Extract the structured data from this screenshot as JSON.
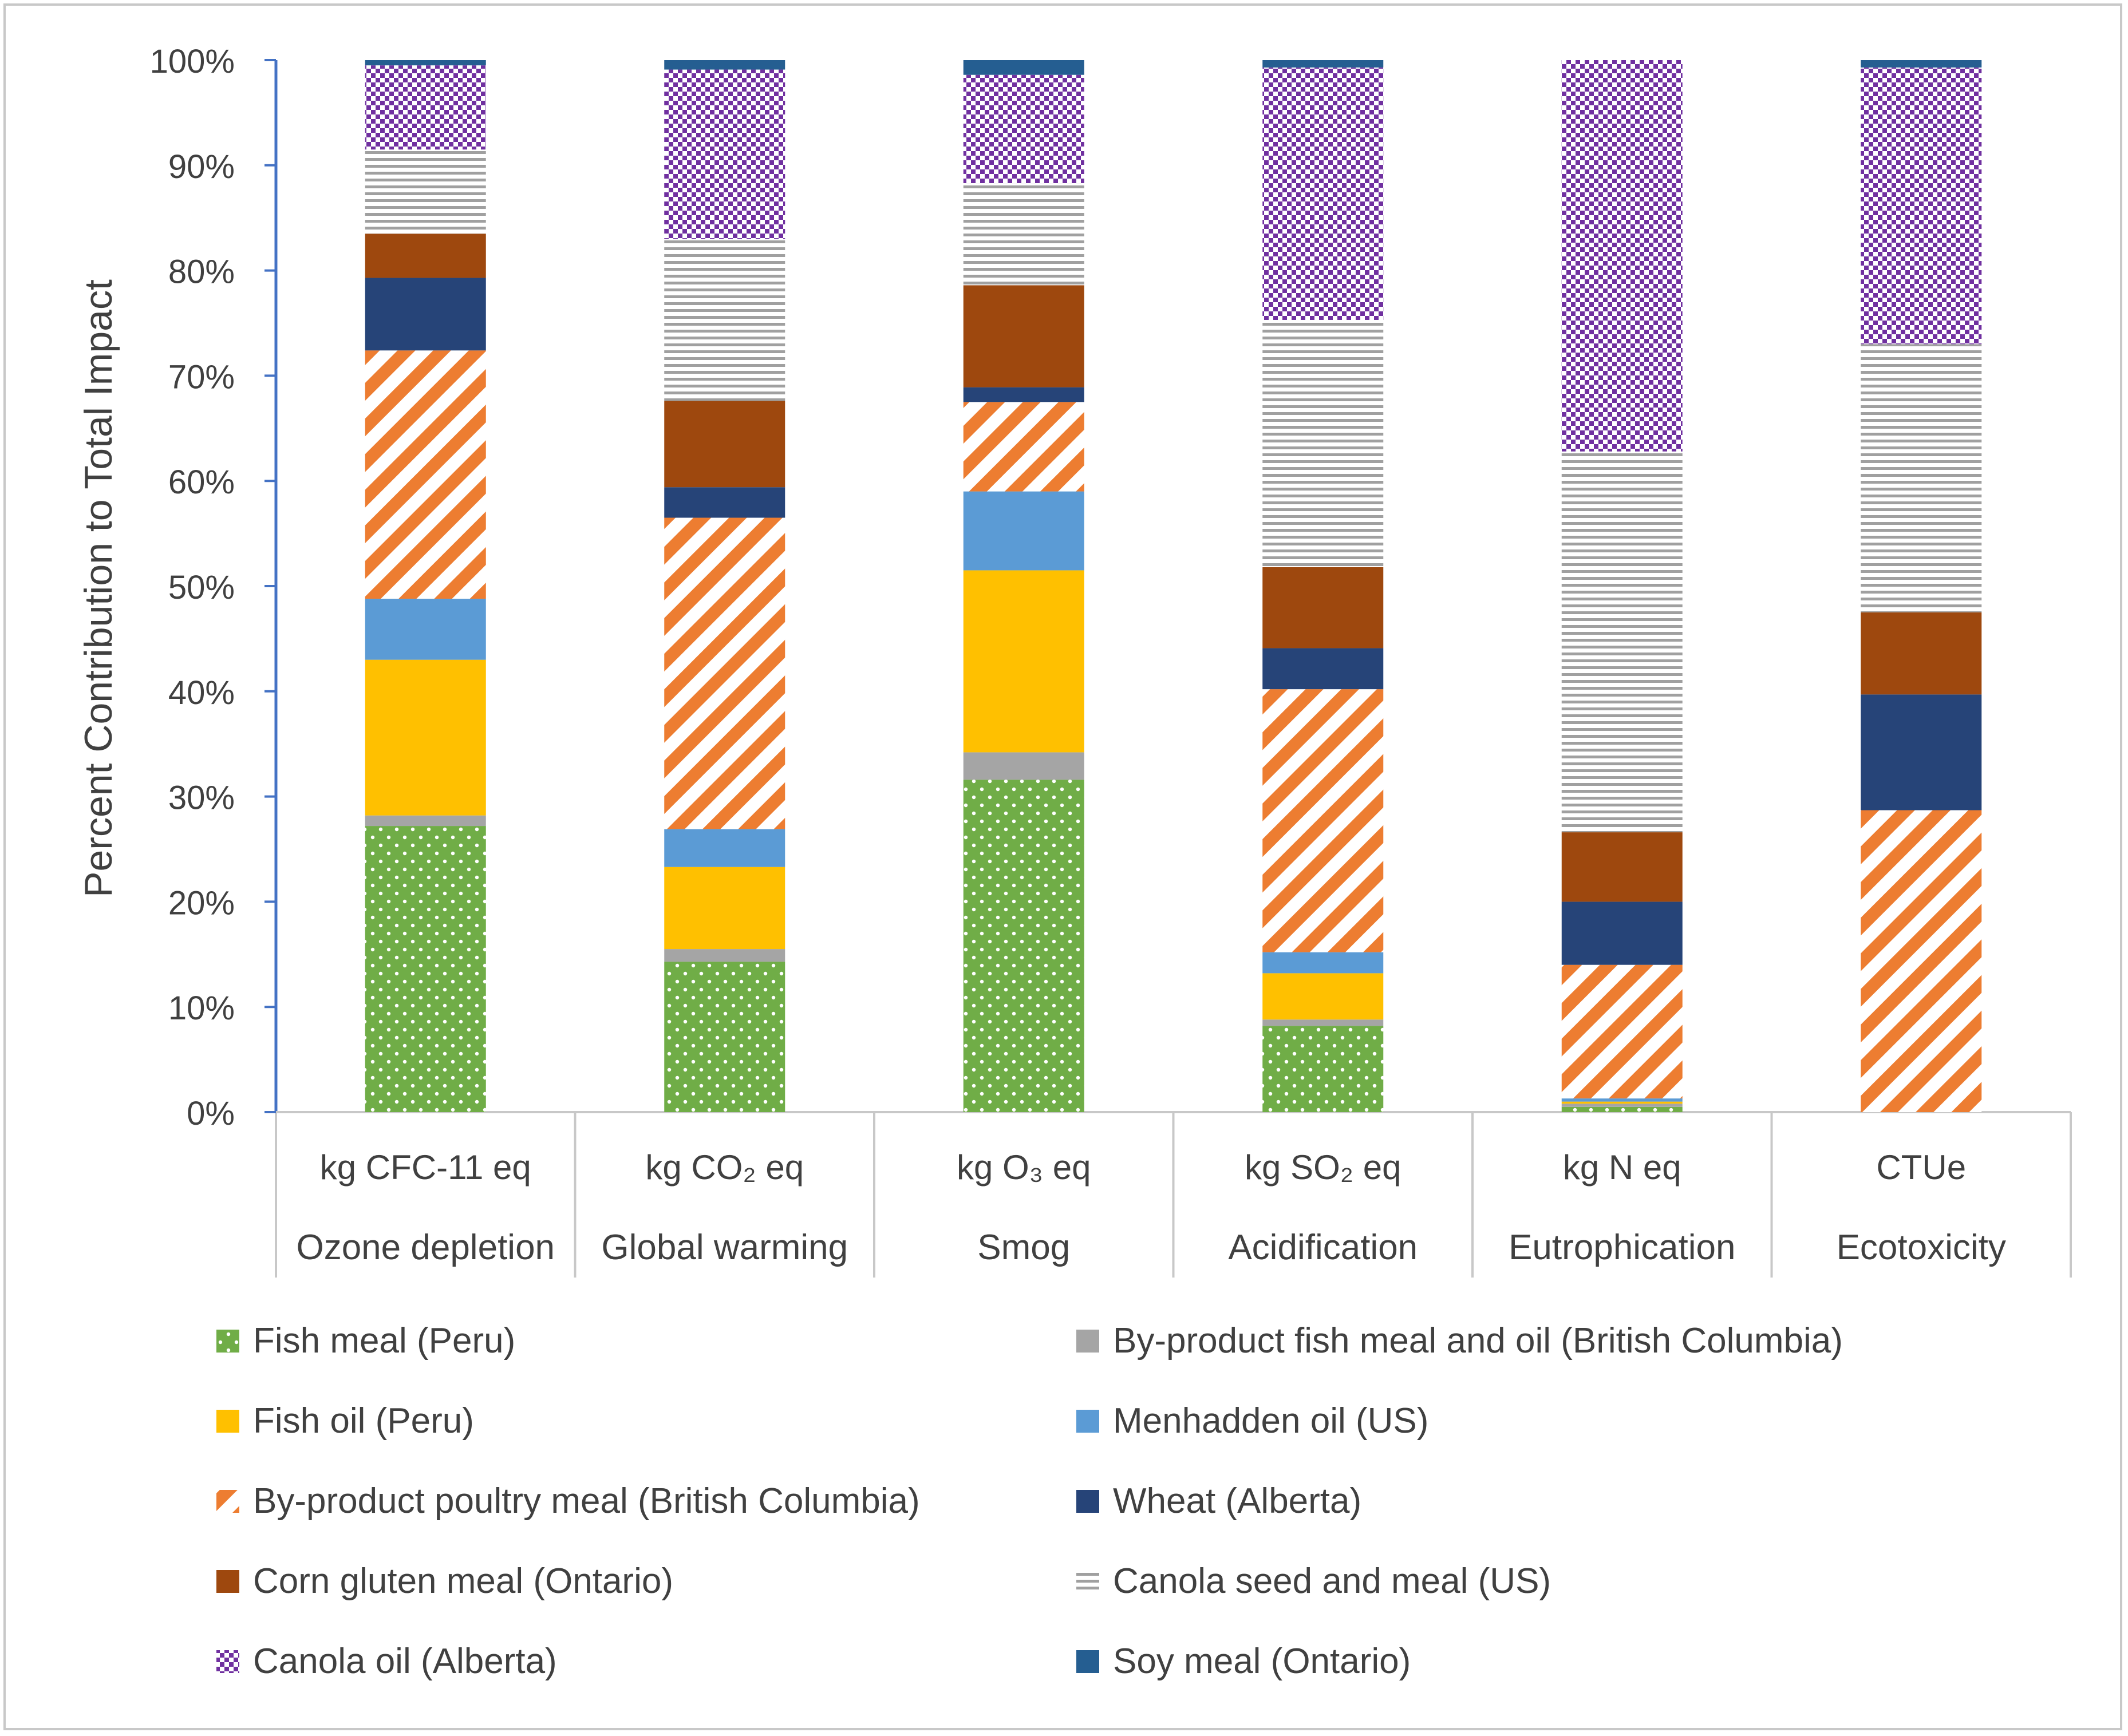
{
  "chart_data": {
    "type": "bar",
    "stacked": true,
    "ylabel": "Percent Contribution to Total Impact",
    "ylim": [
      0,
      100
    ],
    "yticks": [
      "0%",
      "10%",
      "20%",
      "30%",
      "40%",
      "50%",
      "60%",
      "70%",
      "80%",
      "90%",
      "100%"
    ],
    "categories": [
      {
        "unit": "kg CFC-11 eq",
        "name": "Ozone depletion"
      },
      {
        "unit": "kg CO₂ eq",
        "name": "Global warming"
      },
      {
        "unit": "kg O₃ eq",
        "name": "Smog"
      },
      {
        "unit": "kg SO₂ eq",
        "name": "Acidification"
      },
      {
        "unit": "kg N eq",
        "name": "Eutrophication"
      },
      {
        "unit": "CTUe",
        "name": "Ecotoxicity"
      }
    ],
    "legend_position": "bottom",
    "series": [
      {
        "name": "Fish meal (Peru)",
        "color": "#70ad47",
        "pattern": "dots",
        "values": [
          27.2,
          14.3,
          31.6,
          8.2,
          0.5,
          0
        ]
      },
      {
        "name": "By-product fish meal and oil (British Columbia)",
        "color": "#a5a5a5",
        "pattern": "solid",
        "values": [
          1.0,
          1.2,
          2.6,
          0.6,
          0.3,
          0
        ]
      },
      {
        "name": "Fish oil (Peru)",
        "color": "#ffc000",
        "pattern": "solid",
        "values": [
          14.8,
          7.8,
          17.3,
          4.4,
          0.2,
          0
        ]
      },
      {
        "name": "Menhadden oil (US)",
        "color": "#5b9bd5",
        "pattern": "solid",
        "values": [
          5.8,
          3.6,
          7.5,
          2.0,
          0.3,
          0
        ]
      },
      {
        "name": "By-product poultry meal (British Columbia)",
        "color": "#ed7d31",
        "pattern": "stripes",
        "values": [
          23.6,
          29.6,
          8.5,
          25.0,
          12.7,
          28.7
        ]
      },
      {
        "name": "Wheat (Alberta)",
        "color": "#264478",
        "pattern": "solid",
        "values": [
          6.9,
          2.9,
          1.4,
          3.9,
          6.0,
          11.0
        ]
      },
      {
        "name": "Corn gluten meal (Ontario)",
        "color": "#9e480e",
        "pattern": "solid",
        "values": [
          4.2,
          8.2,
          9.7,
          7.7,
          6.6,
          7.8
        ]
      },
      {
        "name": "Canola seed and meal (US)",
        "color": "#a0a0a0",
        "pattern": "hlines",
        "values": [
          8.0,
          15.4,
          9.7,
          23.5,
          36.2,
          25.5
        ]
      },
      {
        "name": "Canola oil (Alberta)",
        "color": "#7030a0",
        "pattern": "checker",
        "values": [
          8.0,
          16.1,
          10.3,
          24.0,
          37.2,
          26.3
        ]
      },
      {
        "name": "Soy meal (Ontario)",
        "color": "#255e91",
        "pattern": "solid",
        "values": [
          0.5,
          0.9,
          1.4,
          0.7,
          0.0,
          0.7
        ]
      }
    ]
  }
}
